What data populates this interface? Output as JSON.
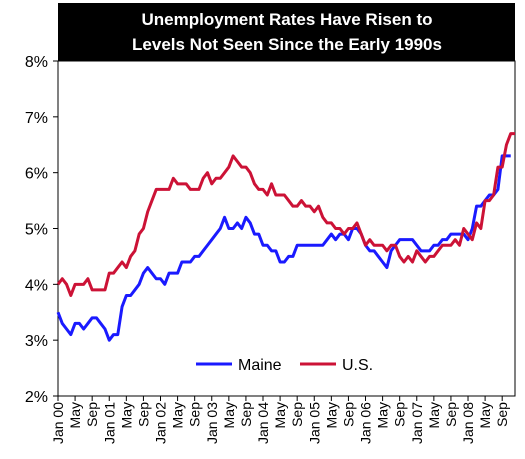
{
  "chart_data": {
    "type": "line",
    "title_lines": [
      "Unemployment Rates Have Risen to",
      "Levels Not Seen Since the Early 1990s"
    ],
    "ylim": [
      2,
      8
    ],
    "yticks": [
      "2%",
      "3%",
      "4%",
      "5%",
      "6%",
      "7%",
      "8%"
    ],
    "xlim": [
      "Jan 00",
      "Dec 08"
    ],
    "xticks": [
      "Jan 00",
      "May",
      "Sep",
      "Jan 01",
      "May",
      "Sep",
      "Jan 02",
      "May",
      "Sep",
      "Jan 03",
      "May",
      "Sep",
      "Jan 04",
      "May",
      "Sep",
      "Jan 05",
      "May",
      "Sep",
      "Jan 06",
      "May",
      "Sep",
      "Jan 07",
      "May",
      "Sep",
      "Jan 08",
      "May",
      "Sep"
    ],
    "legend": {
      "placement": "bottom-center"
    },
    "grid": false,
    "series": [
      {
        "name": "Maine",
        "color": "#1a1aff",
        "points": [
          [
            "2000-01",
            3.5
          ],
          [
            "2000-02",
            3.3
          ],
          [
            "2000-03",
            3.2
          ],
          [
            "2000-04",
            3.1
          ],
          [
            "2000-05",
            3.3
          ],
          [
            "2000-06",
            3.3
          ],
          [
            "2000-07",
            3.2
          ],
          [
            "2000-08",
            3.3
          ],
          [
            "2000-09",
            3.4
          ],
          [
            "2000-10",
            3.4
          ],
          [
            "2000-11",
            3.3
          ],
          [
            "2000-12",
            3.2
          ],
          [
            "2001-01",
            3.0
          ],
          [
            "2001-02",
            3.1
          ],
          [
            "2001-03",
            3.1
          ],
          [
            "2001-04",
            3.6
          ],
          [
            "2001-05",
            3.8
          ],
          [
            "2001-06",
            3.8
          ],
          [
            "2001-07",
            3.9
          ],
          [
            "2001-08",
            4.0
          ],
          [
            "2001-09",
            4.2
          ],
          [
            "2001-10",
            4.3
          ],
          [
            "2001-11",
            4.2
          ],
          [
            "2001-12",
            4.1
          ],
          [
            "2002-01",
            4.1
          ],
          [
            "2002-02",
            4.0
          ],
          [
            "2002-03",
            4.2
          ],
          [
            "2002-04",
            4.2
          ],
          [
            "2002-05",
            4.2
          ],
          [
            "2002-06",
            4.4
          ],
          [
            "2002-07",
            4.4
          ],
          [
            "2002-08",
            4.4
          ],
          [
            "2002-09",
            4.5
          ],
          [
            "2002-10",
            4.5
          ],
          [
            "2002-11",
            4.6
          ],
          [
            "2002-12",
            4.7
          ],
          [
            "2003-01",
            4.8
          ],
          [
            "2003-02",
            4.9
          ],
          [
            "2003-03",
            5.0
          ],
          [
            "2003-04",
            5.2
          ],
          [
            "2003-05",
            5.0
          ],
          [
            "2003-06",
            5.0
          ],
          [
            "2003-07",
            5.1
          ],
          [
            "2003-08",
            5.0
          ],
          [
            "2003-09",
            5.2
          ],
          [
            "2003-10",
            5.1
          ],
          [
            "2003-11",
            4.9
          ],
          [
            "2003-12",
            4.9
          ],
          [
            "2004-01",
            4.7
          ],
          [
            "2004-02",
            4.7
          ],
          [
            "2004-03",
            4.6
          ],
          [
            "2004-04",
            4.6
          ],
          [
            "2004-05",
            4.4
          ],
          [
            "2004-06",
            4.4
          ],
          [
            "2004-07",
            4.5
          ],
          [
            "2004-08",
            4.5
          ],
          [
            "2004-09",
            4.7
          ],
          [
            "2004-10",
            4.7
          ],
          [
            "2004-11",
            4.7
          ],
          [
            "2004-12",
            4.7
          ],
          [
            "2005-01",
            4.7
          ],
          [
            "2005-02",
            4.7
          ],
          [
            "2005-03",
            4.7
          ],
          [
            "2005-04",
            4.8
          ],
          [
            "2005-05",
            4.9
          ],
          [
            "2005-06",
            4.8
          ],
          [
            "2005-07",
            4.9
          ],
          [
            "2005-08",
            4.9
          ],
          [
            "2005-09",
            4.8
          ],
          [
            "2005-10",
            5.0
          ],
          [
            "2005-11",
            5.0
          ],
          [
            "2005-12",
            4.9
          ],
          [
            "2006-01",
            4.7
          ],
          [
            "2006-02",
            4.6
          ],
          [
            "2006-03",
            4.6
          ],
          [
            "2006-04",
            4.5
          ],
          [
            "2006-05",
            4.4
          ],
          [
            "2006-06",
            4.3
          ],
          [
            "2006-07",
            4.6
          ],
          [
            "2006-08",
            4.7
          ],
          [
            "2006-09",
            4.8
          ],
          [
            "2006-10",
            4.8
          ],
          [
            "2006-11",
            4.8
          ],
          [
            "2006-12",
            4.8
          ],
          [
            "2007-01",
            4.7
          ],
          [
            "2007-02",
            4.6
          ],
          [
            "2007-03",
            4.6
          ],
          [
            "2007-04",
            4.6
          ],
          [
            "2007-05",
            4.7
          ],
          [
            "2007-06",
            4.7
          ],
          [
            "2007-07",
            4.8
          ],
          [
            "2007-08",
            4.8
          ],
          [
            "2007-09",
            4.9
          ],
          [
            "2007-10",
            4.9
          ],
          [
            "2007-11",
            4.9
          ],
          [
            "2007-12",
            4.9
          ],
          [
            "2008-01",
            4.8
          ],
          [
            "2008-02",
            5.0
          ],
          [
            "2008-03",
            5.4
          ],
          [
            "2008-04",
            5.4
          ],
          [
            "2008-05",
            5.5
          ],
          [
            "2008-06",
            5.6
          ],
          [
            "2008-07",
            5.6
          ],
          [
            "2008-08",
            5.7
          ],
          [
            "2008-09",
            6.3
          ],
          [
            "2008-10",
            6.3
          ],
          [
            "2008-11",
            6.3
          ]
        ]
      },
      {
        "name": "U.S.",
        "color": "#cc1236",
        "points": [
          [
            "2000-01",
            4.0
          ],
          [
            "2000-02",
            4.1
          ],
          [
            "2000-03",
            4.0
          ],
          [
            "2000-04",
            3.8
          ],
          [
            "2000-05",
            4.0
          ],
          [
            "2000-06",
            4.0
          ],
          [
            "2000-07",
            4.0
          ],
          [
            "2000-08",
            4.1
          ],
          [
            "2000-09",
            3.9
          ],
          [
            "2000-10",
            3.9
          ],
          [
            "2000-11",
            3.9
          ],
          [
            "2000-12",
            3.9
          ],
          [
            "2001-01",
            4.2
          ],
          [
            "2001-02",
            4.2
          ],
          [
            "2001-03",
            4.3
          ],
          [
            "2001-04",
            4.4
          ],
          [
            "2001-05",
            4.3
          ],
          [
            "2001-06",
            4.5
          ],
          [
            "2001-07",
            4.6
          ],
          [
            "2001-08",
            4.9
          ],
          [
            "2001-09",
            5.0
          ],
          [
            "2001-10",
            5.3
          ],
          [
            "2001-11",
            5.5
          ],
          [
            "2001-12",
            5.7
          ],
          [
            "2002-01",
            5.7
          ],
          [
            "2002-02",
            5.7
          ],
          [
            "2002-03",
            5.7
          ],
          [
            "2002-04",
            5.9
          ],
          [
            "2002-05",
            5.8
          ],
          [
            "2002-06",
            5.8
          ],
          [
            "2002-07",
            5.8
          ],
          [
            "2002-08",
            5.7
          ],
          [
            "2002-09",
            5.7
          ],
          [
            "2002-10",
            5.7
          ],
          [
            "2002-11",
            5.9
          ],
          [
            "2002-12",
            6.0
          ],
          [
            "2003-01",
            5.8
          ],
          [
            "2003-02",
            5.9
          ],
          [
            "2003-03",
            5.9
          ],
          [
            "2003-04",
            6.0
          ],
          [
            "2003-05",
            6.1
          ],
          [
            "2003-06",
            6.3
          ],
          [
            "2003-07",
            6.2
          ],
          [
            "2003-08",
            6.1
          ],
          [
            "2003-09",
            6.1
          ],
          [
            "2003-10",
            6.0
          ],
          [
            "2003-11",
            5.8
          ],
          [
            "2003-12",
            5.7
          ],
          [
            "2004-01",
            5.7
          ],
          [
            "2004-02",
            5.6
          ],
          [
            "2004-03",
            5.8
          ],
          [
            "2004-04",
            5.6
          ],
          [
            "2004-05",
            5.6
          ],
          [
            "2004-06",
            5.6
          ],
          [
            "2004-07",
            5.5
          ],
          [
            "2004-08",
            5.4
          ],
          [
            "2004-09",
            5.4
          ],
          [
            "2004-10",
            5.5
          ],
          [
            "2004-11",
            5.4
          ],
          [
            "2004-12",
            5.4
          ],
          [
            "2005-01",
            5.3
          ],
          [
            "2005-02",
            5.4
          ],
          [
            "2005-03",
            5.2
          ],
          [
            "2005-04",
            5.1
          ],
          [
            "2005-05",
            5.1
          ],
          [
            "2005-06",
            5.0
          ],
          [
            "2005-07",
            5.0
          ],
          [
            "2005-08",
            4.9
          ],
          [
            "2005-09",
            5.0
          ],
          [
            "2005-10",
            5.0
          ],
          [
            "2005-11",
            5.1
          ],
          [
            "2005-12",
            4.9
          ],
          [
            "2006-01",
            4.7
          ],
          [
            "2006-02",
            4.8
          ],
          [
            "2006-03",
            4.7
          ],
          [
            "2006-04",
            4.7
          ],
          [
            "2006-05",
            4.7
          ],
          [
            "2006-06",
            4.6
          ],
          [
            "2006-07",
            4.7
          ],
          [
            "2006-08",
            4.7
          ],
          [
            "2006-09",
            4.5
          ],
          [
            "2006-10",
            4.4
          ],
          [
            "2006-11",
            4.5
          ],
          [
            "2006-12",
            4.4
          ],
          [
            "2007-01",
            4.6
          ],
          [
            "2007-02",
            4.5
          ],
          [
            "2007-03",
            4.4
          ],
          [
            "2007-04",
            4.5
          ],
          [
            "2007-05",
            4.5
          ],
          [
            "2007-06",
            4.6
          ],
          [
            "2007-07",
            4.7
          ],
          [
            "2007-08",
            4.7
          ],
          [
            "2007-09",
            4.7
          ],
          [
            "2007-10",
            4.8
          ],
          [
            "2007-11",
            4.7
          ],
          [
            "2007-12",
            5.0
          ],
          [
            "2008-01",
            4.9
          ],
          [
            "2008-02",
            4.8
          ],
          [
            "2008-03",
            5.1
          ],
          [
            "2008-04",
            5.0
          ],
          [
            "2008-05",
            5.5
          ],
          [
            "2008-06",
            5.5
          ],
          [
            "2008-07",
            5.6
          ],
          [
            "2008-08",
            6.1
          ],
          [
            "2008-09",
            6.1
          ],
          [
            "2008-10",
            6.5
          ],
          [
            "2008-11",
            6.7
          ],
          [
            "2008-12",
            6.7
          ]
        ]
      }
    ]
  }
}
